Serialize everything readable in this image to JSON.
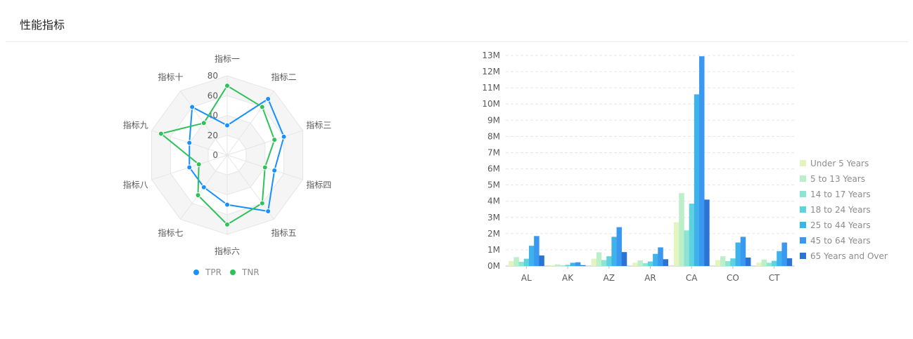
{
  "header": {
    "title": "性能指标"
  },
  "colors": {
    "tpr": "#1890ff",
    "tnr": "#2fc25b",
    "age_groups": [
      "#e3f4bf",
      "#bbefca",
      "#8ee4d3",
      "#5ed3df",
      "#3fb2eb",
      "#3a98f0",
      "#2b74d5"
    ]
  },
  "chart_data": [
    {
      "type": "radar",
      "indicators": [
        "指标一",
        "指标二",
        "指标三",
        "指标四",
        "指标五",
        "指标六",
        "指标七",
        "指标八",
        "指标九",
        "指标十"
      ],
      "rlim": [
        0,
        80
      ],
      "ticks": [
        "0",
        "20",
        "40",
        "60",
        "80"
      ],
      "series": [
        {
          "name": "TPR",
          "values": [
            30,
            70,
            60,
            50,
            70,
            50,
            40,
            40,
            40,
            60
          ]
        },
        {
          "name": "TNR",
          "values": [
            70,
            60,
            50,
            40,
            60,
            70,
            50,
            30,
            70,
            40
          ]
        }
      ],
      "legend_position": "bottom"
    },
    {
      "type": "bar",
      "categories": [
        "AL",
        "AK",
        "AZ",
        "AR",
        "CA",
        "CO",
        "CT"
      ],
      "ylim": [
        0,
        13000000
      ],
      "ytick_labels": [
        "0M",
        "1M",
        "2M",
        "3M",
        "4M",
        "5M",
        "6M",
        "7M",
        "8M",
        "9M",
        "10M",
        "11M",
        "12M",
        "13M"
      ],
      "series": [
        {
          "name": "Under 5 Years",
          "values": [
            310000,
            52000,
            450000,
            200000,
            2700000,
            360000,
            210000
          ]
        },
        {
          "name": "5 to 13 Years",
          "values": [
            550000,
            99000,
            850000,
            350000,
            4500000,
            600000,
            400000
          ]
        },
        {
          "name": "14 to 17 Years",
          "values": [
            260000,
            33000,
            370000,
            170000,
            2200000,
            300000,
            200000
          ]
        },
        {
          "name": "18 to 24 Years",
          "values": [
            450000,
            70000,
            600000,
            280000,
            3850000,
            470000,
            320000
          ]
        },
        {
          "name": "25 to 44 Years",
          "values": [
            1250000,
            200000,
            1800000,
            750000,
            10600000,
            1450000,
            920000
          ]
        },
        {
          "name": "45 to 64 Years",
          "values": [
            1850000,
            230000,
            2400000,
            1150000,
            12950000,
            1800000,
            1450000
          ]
        },
        {
          "name": "65 Years and Over",
          "values": [
            650000,
            52000,
            860000,
            420000,
            4100000,
            520000,
            480000
          ]
        }
      ],
      "legend_position": "right"
    }
  ]
}
